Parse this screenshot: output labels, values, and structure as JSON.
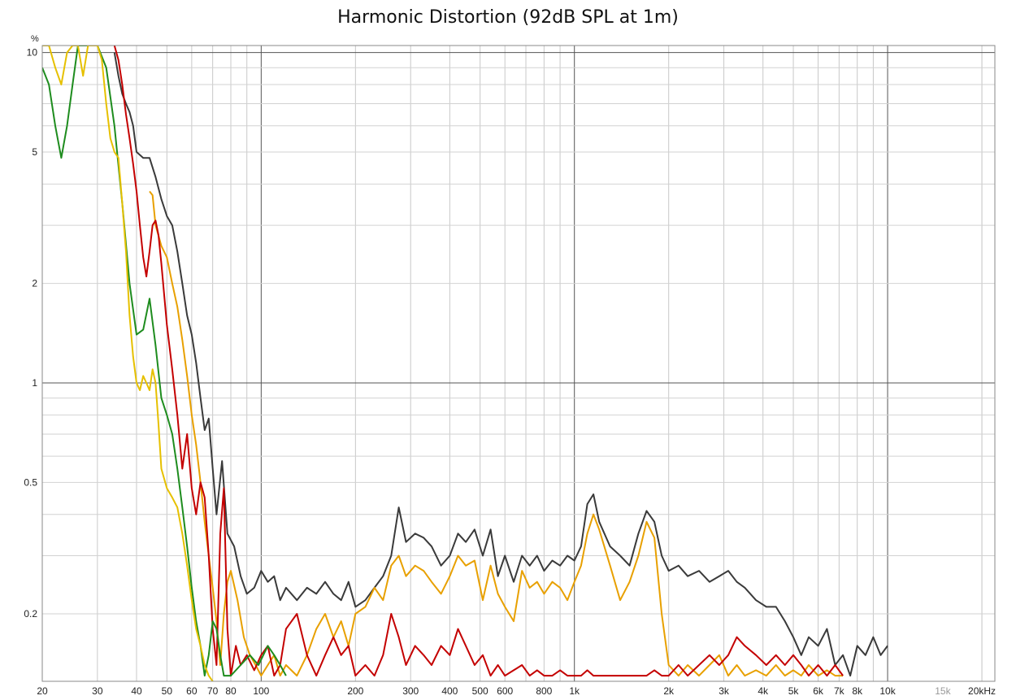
{
  "chart_data": {
    "type": "line",
    "title": "Harmonic Distortion (92dB SPL at 1m)",
    "y_unit": "%",
    "x_unit": "Hz",
    "x_scale": "log",
    "y_scale": "log",
    "xlim": [
      20,
      22000
    ],
    "ylim": [
      0.125,
      10.5
    ],
    "grid": true,
    "x_ticks": [
      {
        "value": 20,
        "label": "20"
      },
      {
        "value": 30,
        "label": "30"
      },
      {
        "value": 40,
        "label": "40"
      },
      {
        "value": 50,
        "label": "50"
      },
      {
        "value": 60,
        "label": "60"
      },
      {
        "value": 70,
        "label": "70"
      },
      {
        "value": 80,
        "label": "80"
      },
      {
        "value": 100,
        "label": "100"
      },
      {
        "value": 200,
        "label": "200"
      },
      {
        "value": 300,
        "label": "300"
      },
      {
        "value": 400,
        "label": "400"
      },
      {
        "value": 500,
        "label": "500"
      },
      {
        "value": 600,
        "label": "600"
      },
      {
        "value": 800,
        "label": "800"
      },
      {
        "value": 1000,
        "label": "1k"
      },
      {
        "value": 2000,
        "label": "2k"
      },
      {
        "value": 3000,
        "label": "3k"
      },
      {
        "value": 4000,
        "label": "4k"
      },
      {
        "value": 5000,
        "label": "5k"
      },
      {
        "value": 6000,
        "label": "6k"
      },
      {
        "value": 7000,
        "label": "7k"
      },
      {
        "value": 8000,
        "label": "8k"
      },
      {
        "value": 10000,
        "label": "10k"
      },
      {
        "value": 15000,
        "label": "15k",
        "dim": true
      },
      {
        "value": 20000,
        "label": "20kHz"
      }
    ],
    "y_ticks": [
      {
        "value": 10,
        "label": "10"
      },
      {
        "value": 5,
        "label": "5"
      },
      {
        "value": 2,
        "label": "2"
      },
      {
        "value": 1,
        "label": "1"
      },
      {
        "value": 0.5,
        "label": "0.5"
      },
      {
        "value": 0.2,
        "label": "0.2"
      }
    ],
    "series": [
      {
        "color": "#3a3a3a",
        "x": [
          34,
          35,
          36,
          37,
          38,
          39,
          40,
          42,
          44,
          46,
          48,
          50,
          52,
          54,
          56,
          58,
          60,
          62,
          64,
          66,
          68,
          70,
          72,
          75,
          78,
          82,
          86,
          90,
          95,
          100,
          105,
          110,
          115,
          120,
          130,
          140,
          150,
          160,
          170,
          180,
          190,
          200,
          215,
          230,
          245,
          260,
          275,
          290,
          310,
          330,
          350,
          375,
          400,
          425,
          450,
          480,
          510,
          540,
          570,
          600,
          640,
          680,
          720,
          760,
          800,
          850,
          900,
          950,
          1000,
          1050,
          1100,
          1150,
          1200,
          1300,
          1400,
          1500,
          1600,
          1700,
          1800,
          1900,
          2000,
          2150,
          2300,
          2500,
          2700,
          2900,
          3100,
          3300,
          3500,
          3800,
          4100,
          4400,
          4700,
          5000,
          5300,
          5600,
          6000,
          6400,
          6800,
          7200,
          7600,
          8000,
          8500,
          9000,
          9500,
          10000
        ],
        "y": [
          10,
          8.5,
          7.5,
          7.0,
          6.6,
          6.0,
          5.0,
          4.8,
          4.8,
          4.2,
          3.6,
          3.2,
          3.0,
          2.5,
          2.0,
          1.6,
          1.4,
          1.15,
          0.9,
          0.72,
          0.78,
          0.55,
          0.4,
          0.58,
          0.35,
          0.32,
          0.26,
          0.23,
          0.24,
          0.27,
          0.25,
          0.26,
          0.22,
          0.24,
          0.22,
          0.24,
          0.23,
          0.25,
          0.23,
          0.22,
          0.25,
          0.21,
          0.22,
          0.24,
          0.26,
          0.3,
          0.42,
          0.33,
          0.35,
          0.34,
          0.32,
          0.28,
          0.3,
          0.35,
          0.33,
          0.36,
          0.3,
          0.36,
          0.26,
          0.3,
          0.25,
          0.3,
          0.28,
          0.3,
          0.27,
          0.29,
          0.28,
          0.3,
          0.29,
          0.32,
          0.43,
          0.46,
          0.38,
          0.32,
          0.3,
          0.28,
          0.35,
          0.41,
          0.38,
          0.3,
          0.27,
          0.28,
          0.26,
          0.27,
          0.25,
          0.26,
          0.27,
          0.25,
          0.24,
          0.22,
          0.21,
          0.21,
          0.19,
          0.17,
          0.15,
          0.17,
          0.16,
          0.18,
          0.14,
          0.15,
          0.13,
          0.16,
          0.15,
          0.17,
          0.15,
          0.16
        ]
      },
      {
        "color": "#e8a000",
        "x": [
          44,
          45,
          46,
          48,
          50,
          52,
          54,
          56,
          58,
          60,
          62,
          64,
          66,
          68,
          70,
          72,
          74,
          76,
          78,
          80,
          84,
          88,
          92,
          96,
          100,
          105,
          110,
          115,
          120,
          130,
          140,
          150,
          160,
          170,
          180,
          190,
          200,
          215,
          230,
          245,
          260,
          275,
          290,
          310,
          330,
          350,
          375,
          400,
          425,
          450,
          480,
          510,
          540,
          570,
          600,
          640,
          680,
          720,
          760,
          800,
          850,
          900,
          950,
          1000,
          1050,
          1100,
          1150,
          1200,
          1300,
          1400,
          1500,
          1600,
          1700,
          1800,
          1900,
          2000,
          2150,
          2300,
          2500,
          2700,
          2900,
          3100,
          3300,
          3500,
          3800,
          4100,
          4400,
          4700,
          5000,
          5300,
          5600,
          6000,
          6400,
          6800,
          7200
        ],
        "y": [
          3.8,
          3.7,
          3.0,
          2.6,
          2.4,
          2.0,
          1.7,
          1.35,
          1.05,
          0.8,
          0.65,
          0.5,
          0.38,
          0.3,
          0.24,
          0.19,
          0.14,
          0.2,
          0.25,
          0.27,
          0.22,
          0.17,
          0.15,
          0.14,
          0.13,
          0.14,
          0.15,
          0.13,
          0.14,
          0.13,
          0.15,
          0.18,
          0.2,
          0.17,
          0.19,
          0.16,
          0.2,
          0.21,
          0.24,
          0.22,
          0.28,
          0.3,
          0.26,
          0.28,
          0.27,
          0.25,
          0.23,
          0.26,
          0.3,
          0.28,
          0.29,
          0.22,
          0.28,
          0.23,
          0.21,
          0.19,
          0.27,
          0.24,
          0.25,
          0.23,
          0.25,
          0.24,
          0.22,
          0.25,
          0.28,
          0.35,
          0.4,
          0.36,
          0.28,
          0.22,
          0.25,
          0.3,
          0.38,
          0.34,
          0.2,
          0.14,
          0.13,
          0.14,
          0.13,
          0.14,
          0.15,
          0.13,
          0.14,
          0.13,
          0.135,
          0.13,
          0.14,
          0.13,
          0.135,
          0.13,
          0.14,
          0.13,
          0.135,
          0.13,
          0.13
        ]
      },
      {
        "color": "#c40000",
        "x": [
          34,
          35,
          36,
          37,
          38,
          39,
          40,
          41,
          42,
          43,
          44,
          45,
          46,
          47,
          48,
          50,
          52,
          54,
          56,
          58,
          60,
          62,
          64,
          66,
          68,
          70,
          72,
          74,
          76,
          78,
          80,
          83,
          86,
          90,
          95,
          100,
          105,
          110,
          115,
          120,
          130,
          140,
          150,
          160,
          170,
          180,
          190,
          200,
          215,
          230,
          245,
          260,
          275,
          290,
          310,
          330,
          350,
          375,
          400,
          425,
          450,
          480,
          510,
          540,
          570,
          600,
          640,
          680,
          720,
          760,
          800,
          850,
          900,
          950,
          1000,
          1050,
          1100,
          1150,
          1200,
          1300,
          1400,
          1500,
          1600,
          1700,
          1800,
          1900,
          2000,
          2150,
          2300,
          2500,
          2700,
          2900,
          3100,
          3300,
          3500,
          3800,
          4100,
          4400,
          4700,
          5000,
          5300,
          5600,
          6000,
          6400,
          6800,
          7200
        ],
        "y": [
          10.5,
          9.5,
          8.0,
          6.5,
          5.5,
          4.6,
          3.8,
          3.0,
          2.4,
          2.1,
          2.5,
          3.0,
          3.1,
          2.8,
          2.3,
          1.5,
          1.1,
          0.8,
          0.55,
          0.7,
          0.48,
          0.4,
          0.5,
          0.45,
          0.3,
          0.18,
          0.14,
          0.35,
          0.48,
          0.18,
          0.13,
          0.16,
          0.14,
          0.15,
          0.135,
          0.15,
          0.16,
          0.13,
          0.14,
          0.18,
          0.2,
          0.15,
          0.13,
          0.15,
          0.17,
          0.15,
          0.16,
          0.13,
          0.14,
          0.13,
          0.15,
          0.2,
          0.17,
          0.14,
          0.16,
          0.15,
          0.14,
          0.16,
          0.15,
          0.18,
          0.16,
          0.14,
          0.15,
          0.13,
          0.14,
          0.13,
          0.135,
          0.14,
          0.13,
          0.135,
          0.13,
          0.13,
          0.135,
          0.13,
          0.13,
          0.13,
          0.135,
          0.13,
          0.13,
          0.13,
          0.13,
          0.13,
          0.13,
          0.13,
          0.135,
          0.13,
          0.13,
          0.14,
          0.13,
          0.14,
          0.15,
          0.14,
          0.15,
          0.17,
          0.16,
          0.15,
          0.14,
          0.15,
          0.14,
          0.15,
          0.14,
          0.13,
          0.14,
          0.13,
          0.14,
          0.13
        ]
      },
      {
        "color": "#1e8c1e",
        "x": [
          20,
          21,
          22,
          23,
          24,
          25,
          26,
          28,
          30,
          32,
          34,
          36,
          38,
          40,
          42,
          44,
          46,
          48,
          50,
          52,
          54,
          56,
          58,
          60,
          62,
          64,
          66,
          68,
          70,
          72,
          74,
          76,
          80,
          86,
          92,
          98,
          105,
          110,
          115,
          120
        ],
        "y": [
          9.0,
          8.0,
          6.0,
          4.8,
          6.0,
          8.0,
          10.5,
          10.5,
          10.5,
          9.0,
          6.0,
          3.5,
          2.0,
          1.4,
          1.45,
          1.8,
          1.3,
          0.9,
          0.8,
          0.7,
          0.55,
          0.42,
          0.32,
          0.24,
          0.19,
          0.16,
          0.13,
          0.15,
          0.19,
          0.18,
          0.15,
          0.13,
          0.13,
          0.14,
          0.15,
          0.14,
          0.16,
          0.15,
          0.14,
          0.13
        ]
      },
      {
        "color": "#e6c000",
        "x": [
          20,
          21,
          22,
          23,
          24,
          25,
          26,
          27,
          28,
          29,
          30,
          31,
          32,
          33,
          34,
          35,
          36,
          37,
          38,
          39,
          40,
          41,
          42,
          43,
          44,
          45,
          46,
          47,
          48,
          50,
          52,
          54,
          56,
          58,
          60,
          62,
          64,
          66,
          68,
          70
        ],
        "y": [
          10.5,
          10.5,
          9.0,
          8.0,
          10.0,
          10.5,
          10.5,
          8.5,
          10.5,
          10.5,
          10.5,
          9.5,
          7.0,
          5.5,
          5.0,
          4.8,
          3.5,
          2.5,
          1.6,
          1.2,
          1.0,
          0.95,
          1.05,
          1.0,
          0.95,
          1.1,
          1.0,
          0.75,
          0.55,
          0.48,
          0.45,
          0.42,
          0.35,
          0.28,
          0.22,
          0.18,
          0.16,
          0.14,
          0.13,
          0.125
        ]
      }
    ]
  }
}
